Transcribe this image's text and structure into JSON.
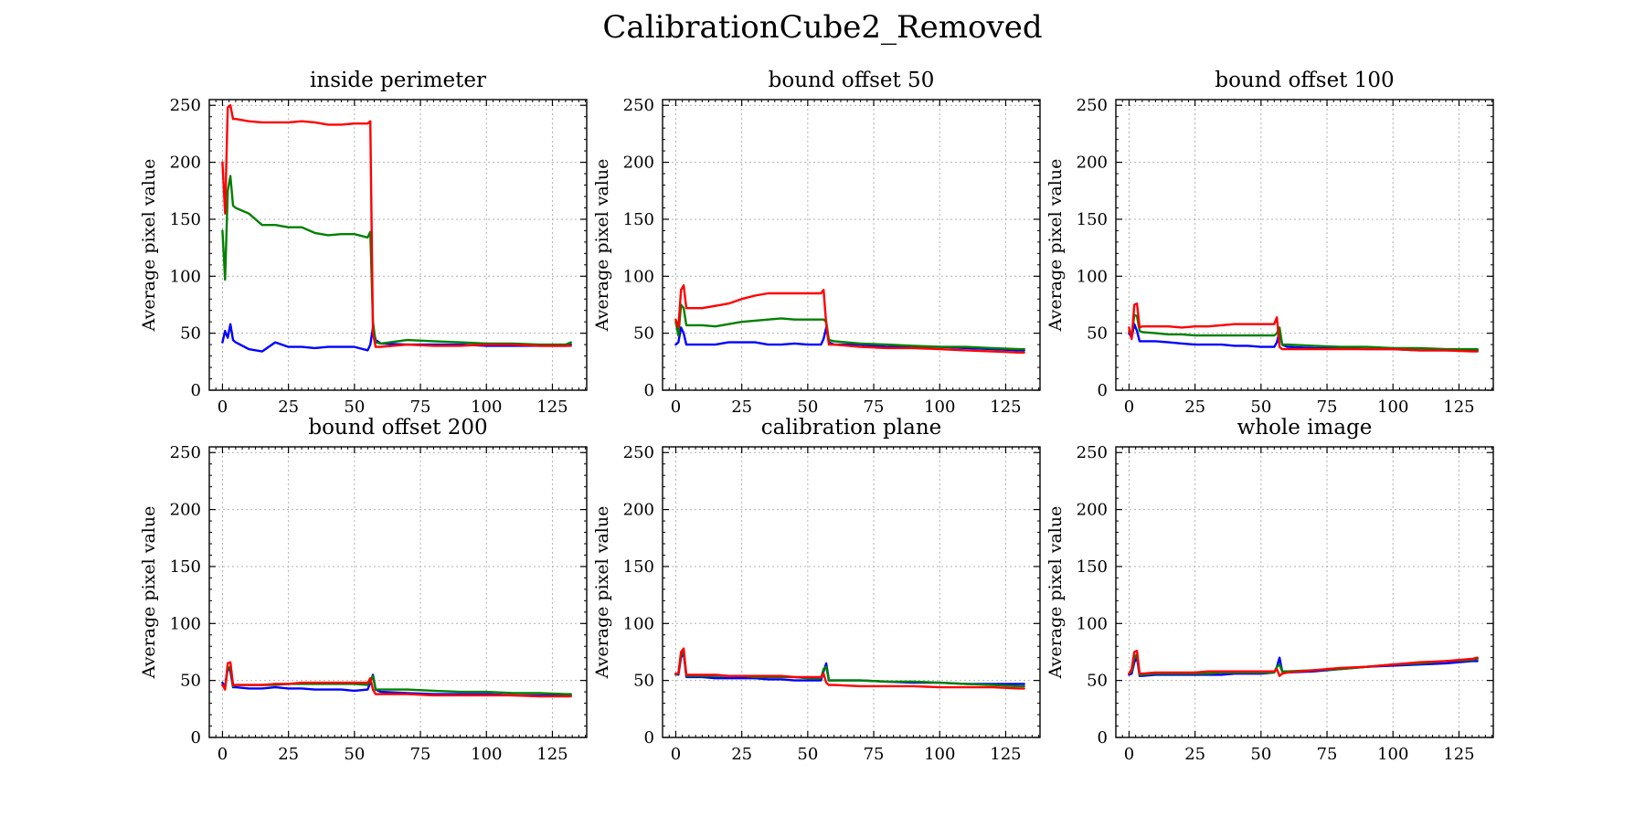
{
  "figure": {
    "title": "CalibrationCube2_Removed"
  },
  "colors": {
    "blue": "#0000ff",
    "green": "#008000",
    "red": "#ff0000",
    "grid": "#b0b0b0",
    "axis": "#000000"
  },
  "chart_data": [
    {
      "type": "line",
      "title": "inside perimeter",
      "xlabel": "",
      "ylabel": "Average pixel value",
      "xlim": [
        -5,
        138
      ],
      "ylim": [
        0,
        255
      ],
      "xticks": [
        0,
        25,
        50,
        75,
        100,
        125
      ],
      "yticks": [
        0,
        50,
        100,
        150,
        200,
        250
      ],
      "grid": true,
      "x": [
        0,
        1,
        2,
        3,
        4,
        5,
        10,
        15,
        20,
        25,
        30,
        35,
        40,
        45,
        50,
        55,
        56,
        57,
        58,
        60,
        70,
        80,
        90,
        100,
        110,
        120,
        130,
        132
      ],
      "series": [
        {
          "color": "blue",
          "values": [
            42,
            52,
            46,
            58,
            44,
            42,
            36,
            34,
            42,
            38,
            38,
            37,
            38,
            38,
            38,
            35,
            40,
            55,
            44,
            41,
            40,
            40,
            40,
            39,
            39,
            39,
            39,
            40
          ]
        },
        {
          "color": "green",
          "values": [
            140,
            97,
            175,
            188,
            162,
            160,
            155,
            145,
            145,
            143,
            143,
            138,
            136,
            137,
            137,
            134,
            139,
            60,
            42,
            41,
            44,
            43,
            42,
            41,
            41,
            40,
            40,
            42
          ]
        },
        {
          "color": "red",
          "values": [
            200,
            155,
            248,
            250,
            238,
            238,
            236,
            235,
            235,
            235,
            236,
            235,
            233,
            233,
            234,
            234,
            236,
            50,
            38,
            38,
            40,
            39,
            39,
            40,
            40,
            39,
            39,
            39
          ]
        }
      ]
    },
    {
      "type": "line",
      "title": "bound offset 50",
      "xlabel": "",
      "ylabel": "Average pixel value",
      "xlim": [
        -5,
        138
      ],
      "ylim": [
        0,
        255
      ],
      "xticks": [
        0,
        25,
        50,
        75,
        100,
        125
      ],
      "yticks": [
        0,
        50,
        100,
        150,
        200,
        250
      ],
      "grid": true,
      "x": [
        0,
        1,
        2,
        3,
        4,
        5,
        10,
        15,
        20,
        25,
        30,
        35,
        40,
        45,
        50,
        55,
        56,
        57,
        58,
        60,
        70,
        80,
        90,
        100,
        110,
        120,
        130,
        132
      ],
      "series": [
        {
          "color": "blue",
          "values": [
            40,
            42,
            55,
            50,
            40,
            40,
            40,
            40,
            42,
            42,
            42,
            40,
            40,
            41,
            40,
            40,
            45,
            55,
            42,
            40,
            40,
            38,
            38,
            38,
            37,
            36,
            35,
            35
          ]
        },
        {
          "color": "green",
          "values": [
            60,
            48,
            75,
            72,
            57,
            57,
            57,
            56,
            58,
            60,
            61,
            62,
            63,
            62,
            62,
            62,
            62,
            60,
            44,
            43,
            41,
            40,
            39,
            38,
            38,
            37,
            36,
            36
          ]
        },
        {
          "color": "red",
          "values": [
            62,
            55,
            88,
            92,
            72,
            72,
            72,
            74,
            76,
            80,
            83,
            85,
            85,
            85,
            85,
            85,
            88,
            58,
            40,
            40,
            38,
            37,
            37,
            36,
            35,
            34,
            33,
            33
          ]
        }
      ]
    },
    {
      "type": "line",
      "title": "bound offset 100",
      "xlabel": "",
      "ylabel": "Average pixel value",
      "xlim": [
        -5,
        138
      ],
      "ylim": [
        0,
        255
      ],
      "xticks": [
        0,
        25,
        50,
        75,
        100,
        125
      ],
      "yticks": [
        0,
        50,
        100,
        150,
        200,
        250
      ],
      "grid": true,
      "x": [
        0,
        1,
        2,
        3,
        4,
        5,
        10,
        15,
        20,
        25,
        30,
        35,
        40,
        45,
        50,
        55,
        56,
        57,
        58,
        60,
        70,
        80,
        90,
        100,
        110,
        120,
        130,
        132
      ],
      "series": [
        {
          "color": "blue",
          "values": [
            50,
            46,
            58,
            52,
            43,
            43,
            43,
            42,
            41,
            40,
            40,
            40,
            39,
            39,
            38,
            38,
            42,
            52,
            40,
            38,
            37,
            37,
            36,
            36,
            35,
            35,
            35,
            35
          ]
        },
        {
          "color": "green",
          "values": [
            52,
            48,
            66,
            65,
            52,
            51,
            50,
            49,
            49,
            48,
            48,
            48,
            48,
            48,
            48,
            48,
            50,
            55,
            40,
            40,
            39,
            38,
            38,
            37,
            37,
            36,
            36,
            36
          ]
        },
        {
          "color": "red",
          "values": [
            55,
            45,
            75,
            76,
            55,
            56,
            56,
            56,
            55,
            56,
            56,
            57,
            58,
            58,
            58,
            58,
            64,
            38,
            36,
            36,
            36,
            36,
            36,
            36,
            35,
            35,
            34,
            34
          ]
        }
      ]
    },
    {
      "type": "line",
      "title": "bound offset 200",
      "xlabel": "",
      "ylabel": "Average pixel value",
      "xlim": [
        -5,
        138
      ],
      "ylim": [
        0,
        255
      ],
      "xticks": [
        0,
        25,
        50,
        75,
        100,
        125
      ],
      "yticks": [
        0,
        50,
        100,
        150,
        200,
        250
      ],
      "grid": true,
      "x": [
        0,
        1,
        2,
        3,
        4,
        5,
        10,
        15,
        20,
        25,
        30,
        35,
        40,
        45,
        50,
        55,
        56,
        57,
        58,
        60,
        70,
        80,
        90,
        100,
        110,
        120,
        130,
        132
      ],
      "series": [
        {
          "color": "blue",
          "values": [
            48,
            44,
            62,
            58,
            44,
            44,
            43,
            43,
            44,
            43,
            43,
            42,
            42,
            42,
            41,
            42,
            48,
            55,
            42,
            40,
            39,
            38,
            38,
            38,
            37,
            37,
            37,
            37
          ]
        },
        {
          "color": "green",
          "values": [
            46,
            44,
            60,
            62,
            45,
            46,
            46,
            46,
            46,
            47,
            47,
            47,
            47,
            47,
            47,
            46,
            50,
            54,
            42,
            42,
            42,
            41,
            40,
            40,
            39,
            39,
            38,
            38
          ]
        },
        {
          "color": "red",
          "values": [
            46,
            42,
            65,
            66,
            46,
            46,
            46,
            46,
            47,
            47,
            48,
            48,
            48,
            48,
            48,
            48,
            52,
            42,
            38,
            38,
            38,
            37,
            37,
            37,
            37,
            36,
            36,
            36
          ]
        }
      ]
    },
    {
      "type": "line",
      "title": "calibration plane",
      "xlabel": "",
      "ylabel": "Average pixel value",
      "xlim": [
        -5,
        138
      ],
      "ylim": [
        0,
        255
      ],
      "xticks": [
        0,
        25,
        50,
        75,
        100,
        125
      ],
      "yticks": [
        0,
        50,
        100,
        150,
        200,
        250
      ],
      "grid": true,
      "x": [
        0,
        1,
        2,
        3,
        4,
        5,
        10,
        15,
        20,
        25,
        30,
        35,
        40,
        45,
        50,
        55,
        56,
        57,
        58,
        60,
        70,
        80,
        90,
        100,
        110,
        120,
        130,
        132
      ],
      "series": [
        {
          "color": "blue",
          "values": [
            56,
            55,
            70,
            74,
            53,
            53,
            53,
            52,
            52,
            52,
            52,
            51,
            51,
            50,
            50,
            50,
            58,
            65,
            50,
            50,
            50,
            49,
            48,
            48,
            47,
            47,
            47,
            47
          ]
        },
        {
          "color": "green",
          "values": [
            55,
            56,
            72,
            76,
            54,
            54,
            54,
            54,
            54,
            54,
            53,
            53,
            53,
            53,
            52,
            52,
            60,
            62,
            50,
            50,
            50,
            49,
            49,
            48,
            47,
            46,
            45,
            45
          ]
        },
        {
          "color": "red",
          "values": [
            56,
            56,
            75,
            78,
            55,
            55,
            55,
            55,
            54,
            54,
            54,
            54,
            54,
            53,
            53,
            53,
            56,
            48,
            46,
            46,
            45,
            45,
            45,
            44,
            44,
            44,
            43,
            43
          ]
        }
      ]
    },
    {
      "type": "line",
      "title": "whole image",
      "xlabel": "",
      "ylabel": "Average pixel value",
      "xlim": [
        -5,
        138
      ],
      "ylim": [
        0,
        255
      ],
      "xticks": [
        0,
        25,
        50,
        75,
        100,
        125
      ],
      "yticks": [
        0,
        50,
        100,
        150,
        200,
        250
      ],
      "grid": true,
      "x": [
        0,
        1,
        2,
        3,
        4,
        5,
        10,
        15,
        20,
        25,
        30,
        35,
        40,
        45,
        50,
        55,
        56,
        57,
        58,
        60,
        70,
        80,
        90,
        100,
        110,
        120,
        130,
        132
      ],
      "series": [
        {
          "color": "blue",
          "values": [
            55,
            56,
            66,
            70,
            54,
            54,
            55,
            55,
            55,
            55,
            55,
            55,
            56,
            56,
            56,
            57,
            62,
            70,
            58,
            57,
            58,
            60,
            62,
            63,
            64,
            65,
            67,
            67
          ]
        },
        {
          "color": "green",
          "values": [
            56,
            58,
            70,
            73,
            55,
            55,
            56,
            56,
            56,
            56,
            56,
            57,
            57,
            57,
            57,
            57,
            62,
            64,
            58,
            58,
            59,
            60,
            62,
            64,
            65,
            67,
            68,
            69
          ]
        },
        {
          "color": "red",
          "values": [
            56,
            60,
            75,
            76,
            56,
            56,
            57,
            57,
            57,
            57,
            58,
            58,
            58,
            58,
            58,
            58,
            60,
            54,
            56,
            57,
            59,
            61,
            62,
            64,
            66,
            67,
            69,
            70
          ]
        }
      ]
    }
  ]
}
